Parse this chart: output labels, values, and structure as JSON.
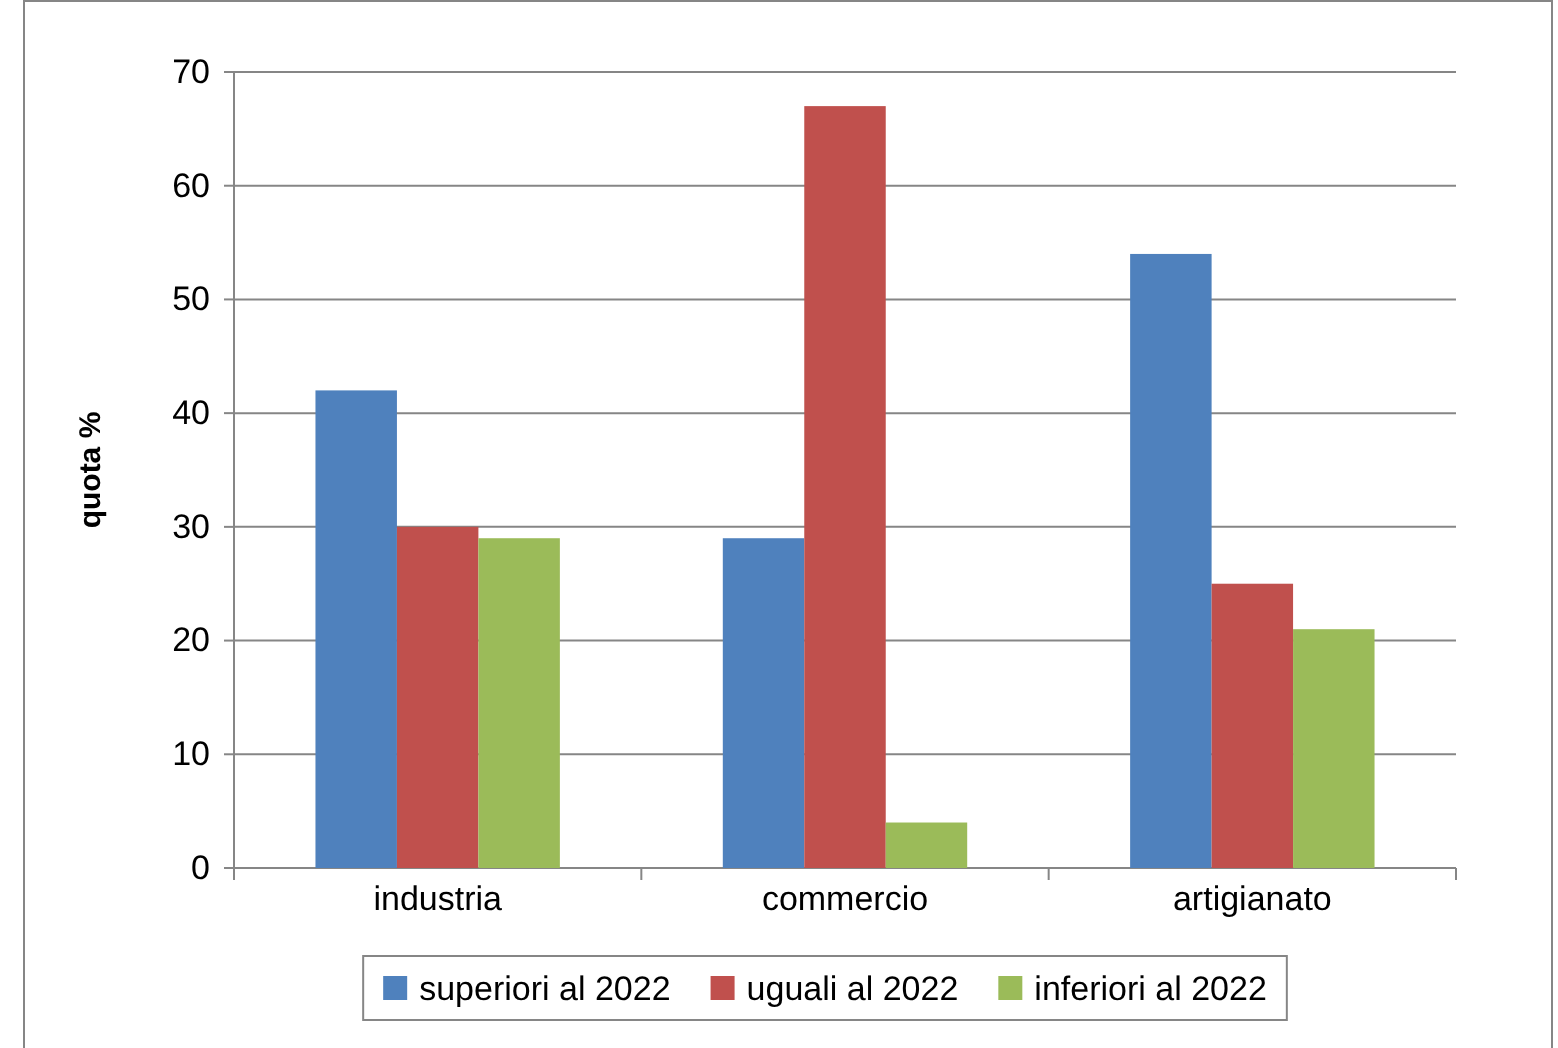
{
  "chart_data": {
    "type": "bar",
    "ylabel": "quota %",
    "categories": [
      "industria",
      "commercio",
      "artigianato"
    ],
    "series": [
      {
        "name": "superiori al 2022",
        "color": "#4f81bd",
        "values": [
          42,
          29,
          54
        ]
      },
      {
        "name": "uguali al 2022",
        "color": "#c0504d",
        "values": [
          30,
          67,
          25
        ]
      },
      {
        "name": "inferiori al 2022",
        "color": "#9bbb59",
        "values": [
          29,
          4,
          21
        ]
      }
    ],
    "ylim": [
      0,
      70
    ],
    "yticks": [
      0,
      10,
      20,
      30,
      40,
      50,
      60,
      70
    ],
    "grid": "y",
    "legend": "bottom"
  }
}
